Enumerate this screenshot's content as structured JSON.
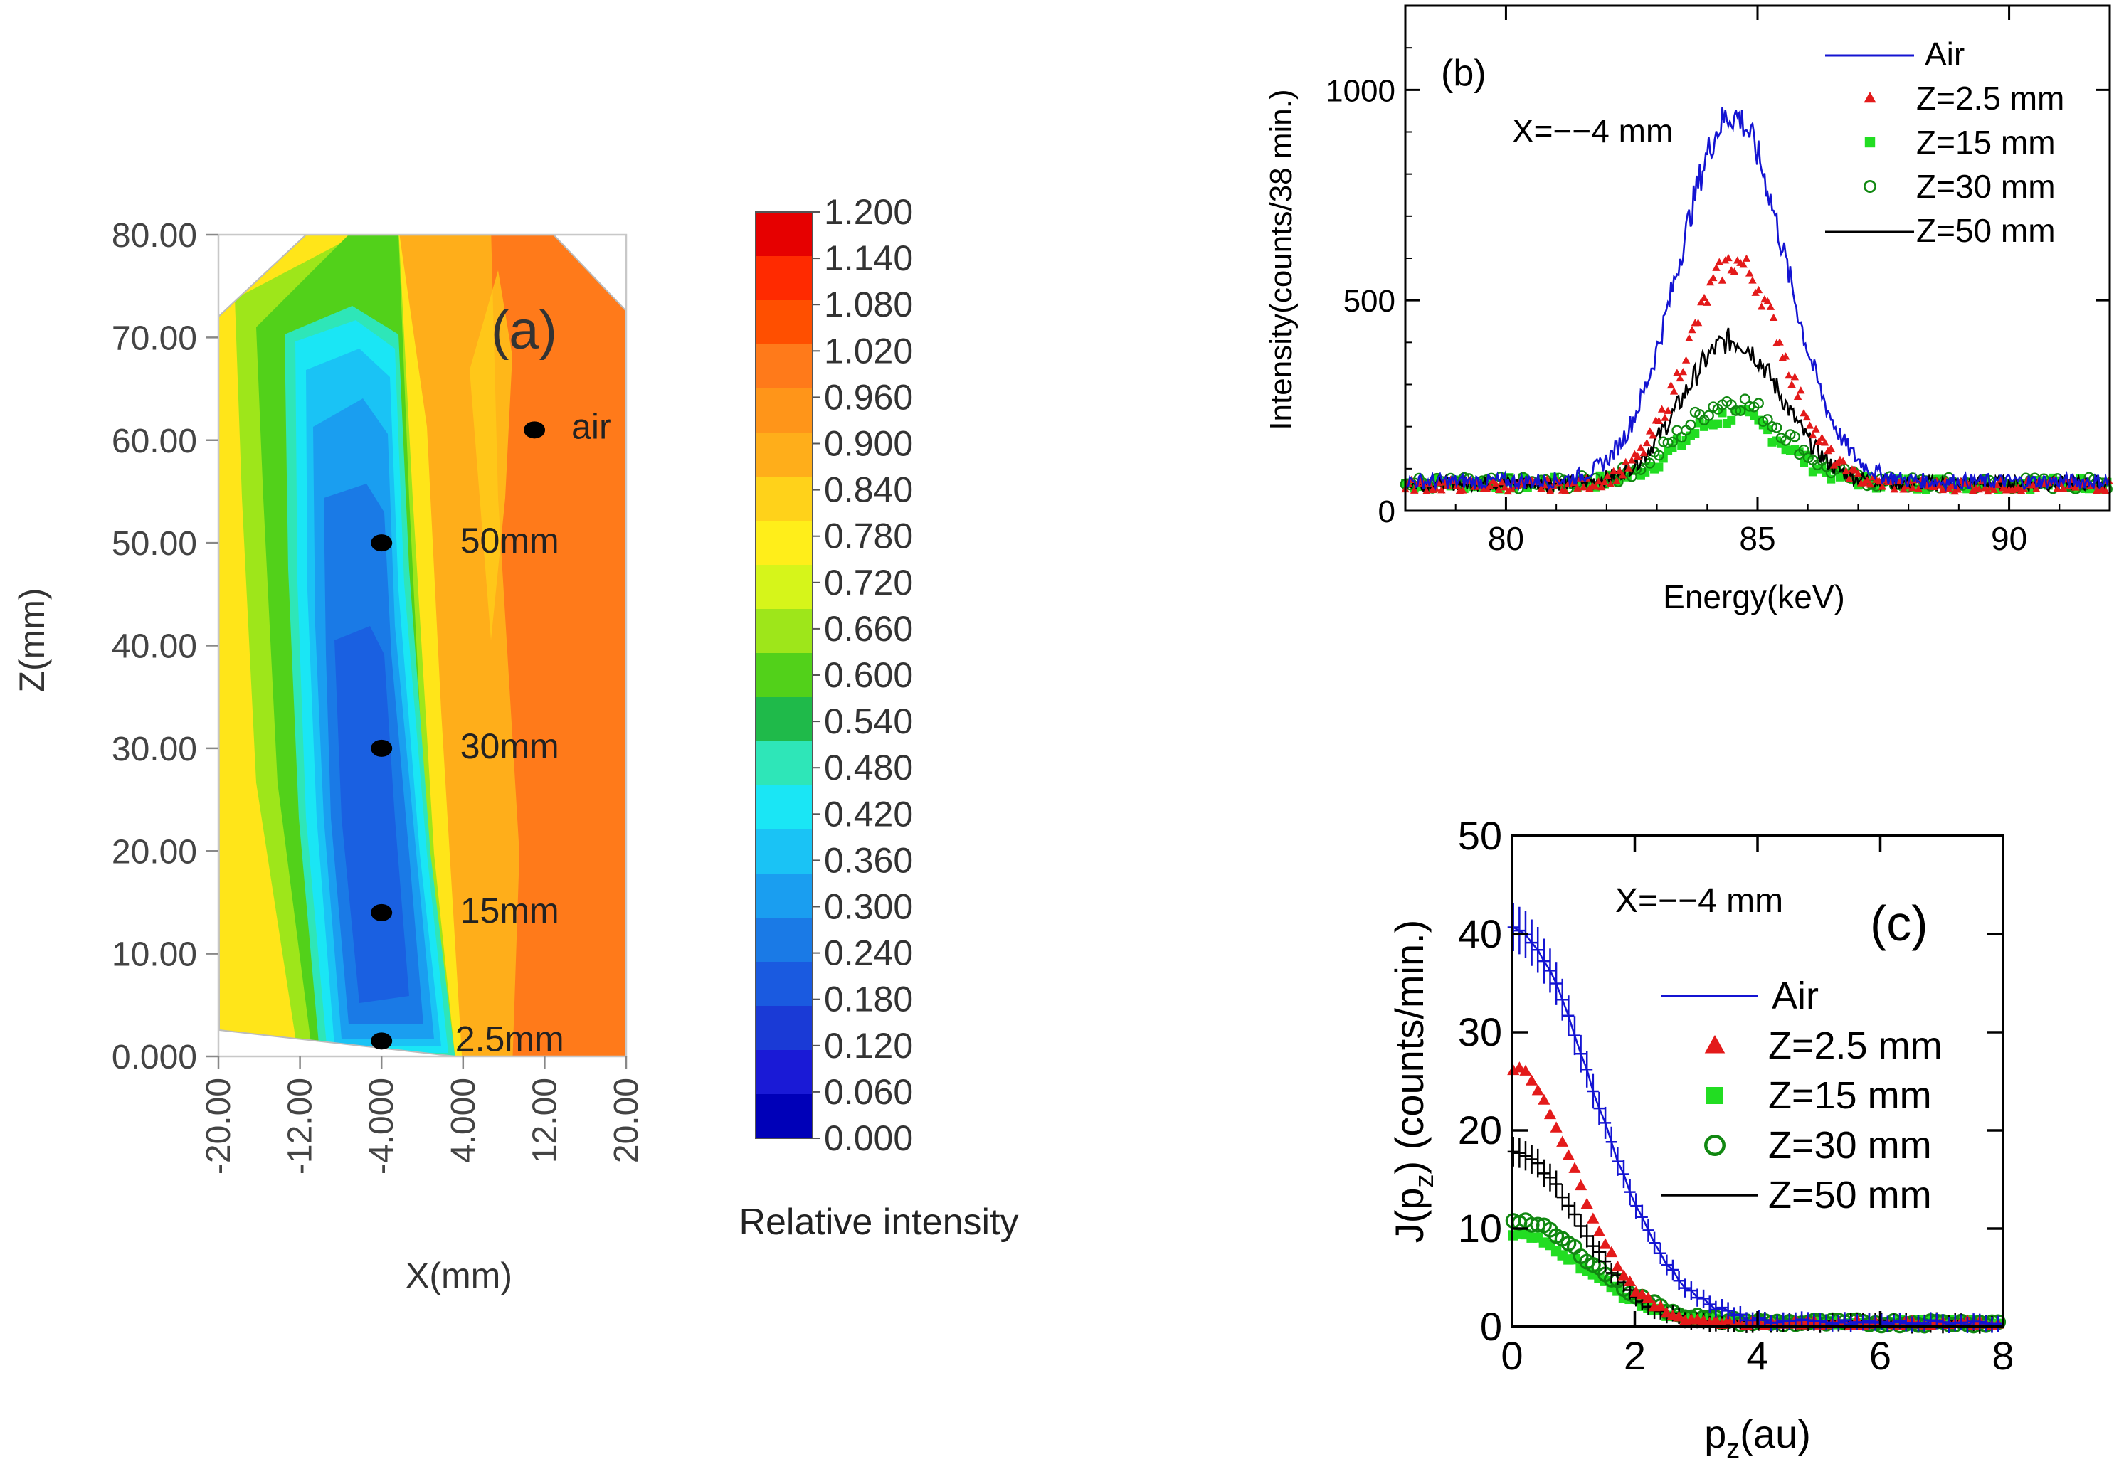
{
  "figure": {
    "title": ""
  },
  "chart_data": [
    {
      "id": "a",
      "type": "heatmap",
      "panel_label": "(a)",
      "xlabel": "X(mm)",
      "ylabel": "Z(mm)",
      "xlim": [
        -20,
        20
      ],
      "ylim": [
        0,
        80
      ],
      "xticks": [
        "-20.00",
        "-12.00",
        "-4.000",
        "4.000",
        "12.00",
        "20.00"
      ],
      "xtick_values": [
        -20,
        -12,
        -4,
        4,
        12,
        20
      ],
      "yticks": [
        "0.000",
        "10.00",
        "20.00",
        "30.00",
        "40.00",
        "50.00",
        "60.00",
        "70.00",
        "80.00"
      ],
      "ytick_values": [
        0,
        10,
        20,
        30,
        40,
        50,
        60,
        70,
        80
      ],
      "colorbar_label": "Relative intensity",
      "colorbar_levels": [
        "1.200",
        "1.140",
        "1.080",
        "1.020",
        "0.960",
        "0.900",
        "0.840",
        "0.780",
        "0.720",
        "0.660",
        "0.600",
        "0.540",
        "0.480",
        "0.420",
        "0.360",
        "0.300",
        "0.240",
        "0.180",
        "0.120",
        "0.060",
        "0.000"
      ],
      "colorbar_colors": [
        "#e60000",
        "#ff2a00",
        "#ff4f00",
        "#ff7a1a",
        "#ff9519",
        "#ffae1a",
        "#ffd21a",
        "#ffee1a",
        "#d6f51a",
        "#9ee61a",
        "#52d11a",
        "#1fba4a",
        "#2ee6b8",
        "#1ae6f5",
        "#1ac3f5",
        "#1a9ef0",
        "#1a7ae6",
        "#1a5ae0",
        "#1a3ad6",
        "#1a1ad6",
        "#0000b8"
      ],
      "points": [
        {
          "label": "air",
          "x": 11,
          "z": 61
        },
        {
          "label": "50mm",
          "x": -4,
          "z": 50
        },
        {
          "label": "30mm",
          "x": -4,
          "z": 30
        },
        {
          "label": "15mm",
          "x": -4,
          "z": 14
        },
        {
          "label": "2.5mm",
          "x": -4,
          "z": 1.5
        }
      ]
    },
    {
      "id": "b",
      "type": "line",
      "panel_label": "(b)",
      "annotation": "X=−−4 mm",
      "xlabel": "Energy(keV)",
      "ylabel": "Intensity(counts/38 min.)",
      "xlim": [
        78,
        92
      ],
      "ylim": [
        0,
        1200
      ],
      "xticks": [
        "80",
        "85",
        "90"
      ],
      "xtick_values": [
        80,
        85,
        90
      ],
      "yticks": [
        "0",
        "500",
        "1000"
      ],
      "ytick_values": [
        0,
        500,
        1000
      ],
      "legend": [
        "Air",
        "Z=2.5 mm",
        "Z=15 mm",
        "Z=30 mm",
        "Z=50 mm"
      ],
      "series": [
        {
          "name": "Air",
          "color": "#1414d2",
          "marker": "line",
          "peak": 870,
          "center": 84.5,
          "width": 1.05,
          "base": 70
        },
        {
          "name": "Z=2.5 mm",
          "color": "#e31a1a",
          "marker": "triangle",
          "peak": 530,
          "center": 84.55,
          "width": 0.95,
          "base": 60
        },
        {
          "name": "Z=15 mm",
          "color": "#22dd22",
          "marker": "square",
          "peak": 160,
          "center": 84.5,
          "width": 1.0,
          "base": 65
        },
        {
          "name": "Z=30 mm",
          "color": "#118811",
          "marker": "circle",
          "peak": 195,
          "center": 84.5,
          "width": 1.05,
          "base": 65
        },
        {
          "name": "Z=50 mm",
          "color": "#000000",
          "marker": "line",
          "peak": 340,
          "center": 84.5,
          "width": 0.98,
          "base": 65
        }
      ]
    },
    {
      "id": "c",
      "type": "scatter",
      "panel_label": "(c)",
      "annotation": "X=−−4 mm",
      "xlabel": "p",
      "xlabel_sub": "z",
      "xlabel_unit": "(au)",
      "ylabel": "J(p",
      "ylabel_sub": "z",
      "ylabel_unit": ") (counts/min.)",
      "xlim": [
        0,
        8
      ],
      "ylim": [
        0,
        50
      ],
      "xticks": [
        "0",
        "2",
        "4",
        "6",
        "8"
      ],
      "xtick_values": [
        0,
        2,
        4,
        6,
        8
      ],
      "yticks": [
        "0",
        "10",
        "20",
        "30",
        "40",
        "50"
      ],
      "ytick_values": [
        0,
        10,
        20,
        30,
        40,
        50
      ],
      "legend": [
        "Air",
        "Z=2.5 mm",
        "Z=15 mm",
        "Z=30 mm",
        "Z=50 mm"
      ],
      "series": [
        {
          "name": "Air",
          "color": "#1414d2",
          "marker": "errbar",
          "amp": 40,
          "sigma": 1.3
        },
        {
          "name": "Z=2.5 mm",
          "color": "#e31a1a",
          "marker": "triangle",
          "amp": 26,
          "sigma": 1.0
        },
        {
          "name": "Z=15 mm",
          "color": "#22dd22",
          "marker": "square",
          "amp": 9,
          "sigma": 1.2
        },
        {
          "name": "Z=30 mm",
          "color": "#118811",
          "marker": "circle",
          "amp": 10.5,
          "sigma": 1.25
        },
        {
          "name": "Z=50 mm",
          "color": "#000000",
          "marker": "errbar",
          "amp": 17.5,
          "sigma": 1.05
        }
      ]
    }
  ]
}
